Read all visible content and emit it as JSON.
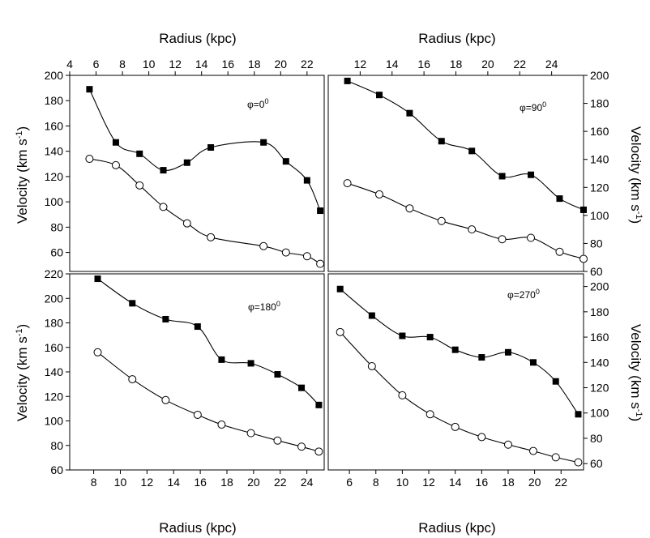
{
  "chart_data": {
    "type": "line",
    "layout": "2x2 grid of line plots",
    "top_axis_title": "Radius (kpc)",
    "bottom_axis_title": "Radius (kpc)",
    "left_axis_title": "Velocity (km s",
    "right_axis_title": "Velocity (km s",
    "axis_title_superscript": "-1",
    "axis_title_close": ")",
    "panels": [
      {
        "id": "phi-0",
        "phi_symbol": "φ=0",
        "phi_superscript": "0",
        "xlim": [
          4,
          23.3
        ],
        "ylim": [
          45,
          200
        ],
        "x_ticks": [
          4,
          6,
          8,
          10,
          12,
          14,
          16,
          18,
          20,
          22
        ],
        "y_ticks": [
          60,
          80,
          100,
          120,
          140,
          160,
          180,
          200
        ],
        "x_tick_side": "top",
        "y_tick_side": "left",
        "series": [
          {
            "name": "filled squares",
            "marker": "square-filled",
            "x": [
              5.5,
              7.5,
              9.3,
              11.1,
              12.9,
              14.7,
              18.7,
              20.4,
              22.0,
              23.0
            ],
            "y": [
              189,
              147,
              138,
              125,
              131,
              143,
              147,
              132,
              117,
              93
            ]
          },
          {
            "name": "open circles",
            "marker": "circle-open",
            "x": [
              5.5,
              7.5,
              9.3,
              11.1,
              12.9,
              14.7,
              18.7,
              20.4,
              22.0,
              23.0
            ],
            "y": [
              134,
              129,
              113,
              96,
              83,
              72,
              65,
              60,
              57,
              51
            ]
          }
        ]
      },
      {
        "id": "phi-90",
        "phi_symbol": "φ=90",
        "phi_superscript": "0",
        "xlim": [
          10,
          26
        ],
        "ylim": [
          60,
          200
        ],
        "x_ticks": [
          12,
          14,
          16,
          18,
          20,
          22,
          24
        ],
        "y_ticks": [
          60,
          80,
          100,
          120,
          140,
          160,
          180,
          200
        ],
        "x_tick_side": "top",
        "y_tick_side": "right",
        "series": [
          {
            "name": "filled squares",
            "marker": "square-filled",
            "x": [
              11.2,
              13.2,
              15.1,
              17.1,
              19.0,
              20.9,
              22.7,
              24.5,
              26.0
            ],
            "y": [
              196,
              186,
              173,
              153,
              146,
              128,
              129,
              112,
              104
            ]
          },
          {
            "name": "open circles",
            "marker": "circle-open",
            "x": [
              11.2,
              13.2,
              15.1,
              17.1,
              19.0,
              20.9,
              22.7,
              24.5,
              26.0
            ],
            "y": [
              123,
              115,
              105,
              96,
              90,
              83,
              84,
              74,
              69
            ]
          }
        ]
      },
      {
        "id": "phi-180",
        "phi_symbol": "φ=180",
        "phi_superscript": "0",
        "xlim": [
          6.2,
          25.3
        ],
        "ylim": [
          60,
          220
        ],
        "x_ticks": [
          8,
          10,
          12,
          14,
          16,
          18,
          20,
          22,
          24
        ],
        "y_ticks": [
          60,
          80,
          100,
          120,
          140,
          160,
          180,
          200,
          220
        ],
        "x_tick_side": "bottom",
        "y_tick_side": "left",
        "series": [
          {
            "name": "filled squares",
            "marker": "square-filled",
            "x": [
              8.3,
              10.9,
              13.4,
              15.8,
              17.6,
              19.8,
              21.8,
              23.6,
              24.9
            ],
            "y": [
              216,
              196,
              183,
              177,
              150,
              147,
              138,
              127,
              113
            ]
          },
          {
            "name": "open circles",
            "marker": "circle-open",
            "x": [
              8.3,
              10.9,
              13.4,
              15.8,
              17.6,
              19.8,
              21.8,
              23.6,
              24.9
            ],
            "y": [
              156,
              134,
              117,
              105,
              97,
              90,
              84,
              79,
              75
            ]
          }
        ]
      },
      {
        "id": "phi-270",
        "phi_symbol": "φ=270",
        "phi_superscript": "0",
        "xlim": [
          4.4,
          23.7
        ],
        "ylim": [
          55,
          210
        ],
        "x_ticks": [
          6,
          8,
          10,
          12,
          14,
          16,
          18,
          20,
          22
        ],
        "y_ticks": [
          60,
          80,
          100,
          120,
          140,
          160,
          180,
          200
        ],
        "x_tick_side": "bottom",
        "y_tick_side": "right",
        "series": [
          {
            "name": "filled squares",
            "marker": "square-filled",
            "x": [
              5.3,
              7.7,
              10.0,
              12.1,
              14.0,
              16.0,
              18.0,
              19.9,
              21.6,
              23.3
            ],
            "y": [
              198,
              177,
              161,
              160,
              150,
              144,
              148,
              140,
              125,
              99
            ]
          },
          {
            "name": "open circles",
            "marker": "circle-open",
            "x": [
              5.3,
              7.7,
              10.0,
              12.1,
              14.0,
              16.0,
              18.0,
              19.9,
              21.6,
              23.3
            ],
            "y": [
              164,
              137,
              114,
              99,
              89,
              81,
              75,
              70,
              65,
              61
            ]
          }
        ]
      }
    ]
  }
}
